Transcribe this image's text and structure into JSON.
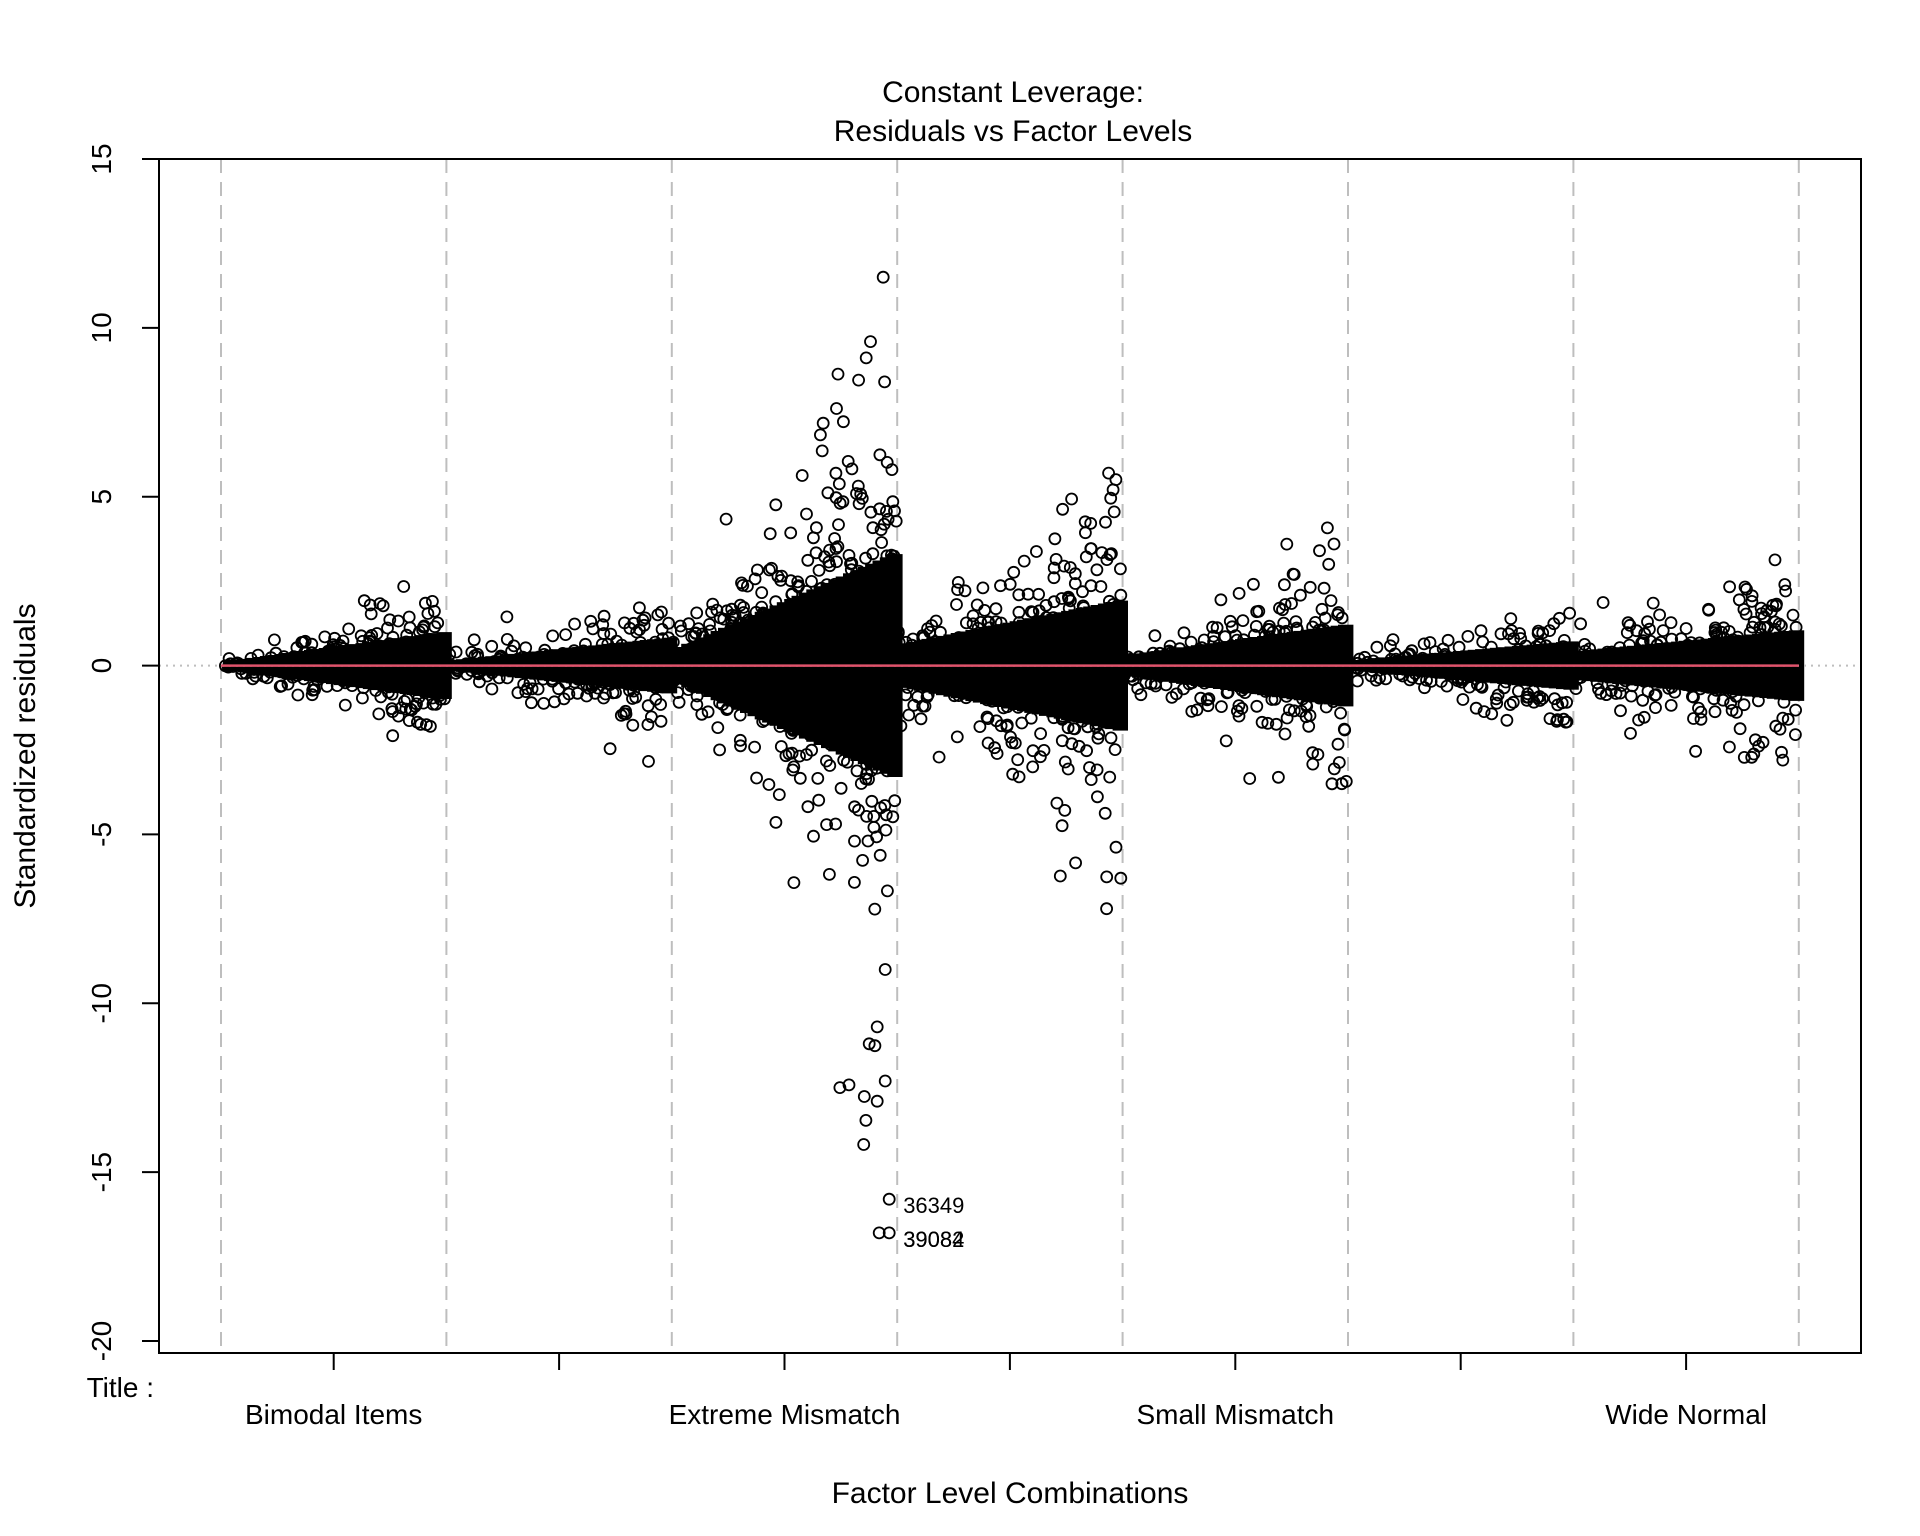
{
  "chart_data": {
    "type": "scatter",
    "title": [
      "Constant Leverage:",
      "Residuals vs Factor Levels"
    ],
    "xlabel": "Factor Level Combinations",
    "ylabel": "Standardized residuals",
    "factor_label": "Title :",
    "ylim": [
      -20,
      15
    ],
    "y_ticks": [
      -20,
      -15,
      -10,
      -5,
      0,
      5,
      10,
      15
    ],
    "categories": [
      "Bimodal Items",
      "Extreme Mismatch",
      "Small Mismatch",
      "Wide Normal"
    ],
    "group_count": 7,
    "reference_line": {
      "y": 0,
      "color": "#DF536B"
    },
    "zero_guide": {
      "y": 0,
      "style": "dotted",
      "color": "#BEBEBE"
    },
    "marker": {
      "shape": "open-circle",
      "color": "#000000"
    },
    "groups": [
      {
        "index": 1,
        "spread_start": 0.25,
        "spread_end": 1.8,
        "max": 1.9,
        "min": -1.8
      },
      {
        "index": 2,
        "spread_start": 0.3,
        "spread_end": 1.5,
        "max": 1.5,
        "min": -1.0
      },
      {
        "index": 3,
        "spread_start": 1.0,
        "spread_end": 6.0,
        "max": 11.5,
        "min": -17.0
      },
      {
        "index": 4,
        "spread_start": 1.2,
        "spread_end": 3.5,
        "max": 5.7,
        "min": -7.2
      },
      {
        "index": 5,
        "spread_start": 0.6,
        "spread_end": 2.2,
        "max": 3.6,
        "min": -3.5
      },
      {
        "index": 6,
        "spread_start": 0.3,
        "spread_end": 1.3,
        "max": 1.4,
        "min": -1.6
      },
      {
        "index": 7,
        "spread_start": 0.8,
        "spread_end": 1.9,
        "max": 2.4,
        "min": -2.8
      }
    ],
    "notable_points": [
      {
        "label": "36349",
        "group": 3.0,
        "y": -15.8
      },
      {
        "label": "39082",
        "group": 3.0,
        "y": -16.8
      },
      {
        "label": "39084",
        "group": 3.0,
        "y": -16.8
      }
    ]
  }
}
